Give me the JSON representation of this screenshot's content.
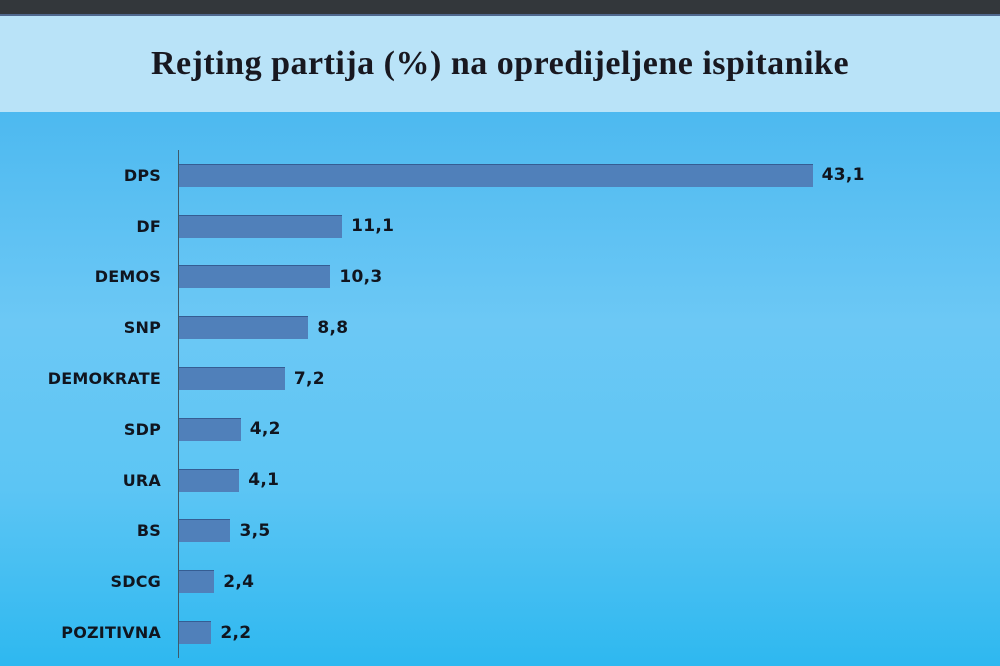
{
  "window": {
    "top_bar_color": "#33373b"
  },
  "header": {
    "title": "Rejting partija (%) na opredijeljene ispitanike",
    "background": "#b9e3f8",
    "text_color": "#181820"
  },
  "chart_data": {
    "type": "bar",
    "orientation": "horizontal",
    "title": "Rejting partija (%) na opredijeljene ispitanike",
    "xlabel": "",
    "ylabel": "",
    "xlim": [
      0,
      45
    ],
    "grid": false,
    "legend": false,
    "categories": [
      "DPS",
      "DF",
      "DEMOS",
      "SNP",
      "DEMOKRATE",
      "SDP",
      "URA",
      "BS",
      "SDCG",
      "POZITIVNA"
    ],
    "values": [
      43.1,
      11.1,
      10.3,
      8.8,
      7.2,
      4.2,
      4.1,
      3.5,
      2.4,
      2.2
    ],
    "value_labels": [
      "43,1",
      "11,1",
      "10,3",
      "8,8",
      "7,2",
      "4,2",
      "4,1",
      "3,5",
      "2,4",
      "2,2"
    ],
    "bar_color": "#5080ba",
    "axis_line_color": "#3e5a6b",
    "label_color": "#10151f",
    "background_gradient": [
      "#4db9f0",
      "#6cc8f5",
      "#5cc5f4",
      "#2eb8f0"
    ]
  }
}
